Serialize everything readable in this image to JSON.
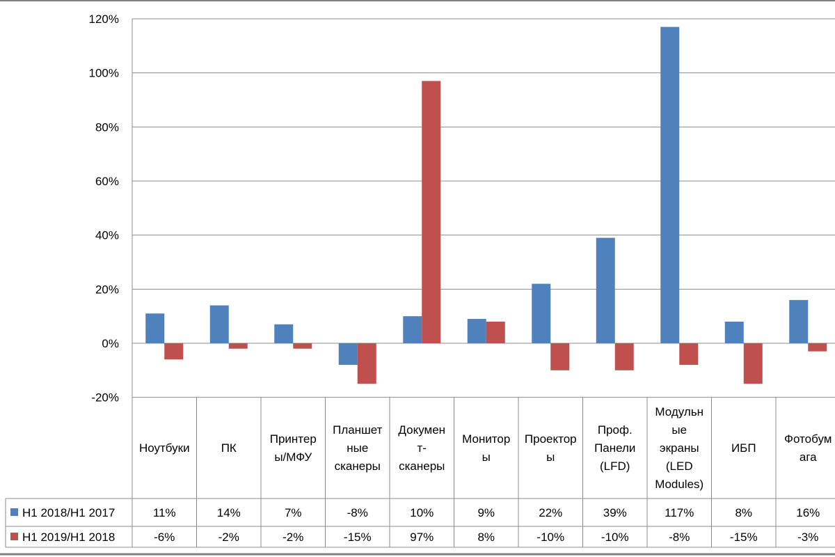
{
  "chart_data": {
    "type": "bar",
    "categories": [
      [
        "Ноутбуки"
      ],
      [
        "ПК"
      ],
      [
        "Принтер",
        "ы/МФУ"
      ],
      [
        "Планшет",
        "ные",
        "сканеры"
      ],
      [
        "Докумен",
        "т-",
        "сканеры"
      ],
      [
        "Монитор",
        "ы"
      ],
      [
        "Проектор",
        "ы"
      ],
      [
        "Проф.",
        "Панели",
        "(LFD)"
      ],
      [
        "Модульн",
        "ые",
        "экраны",
        "(LED",
        "Modules)"
      ],
      [
        "ИБП"
      ],
      [
        "Фотобум",
        "ага"
      ]
    ],
    "series": [
      {
        "name": "H1 2018/H1 2017",
        "color": "#4f81bd",
        "values": [
          11,
          14,
          7,
          -8,
          10,
          9,
          22,
          39,
          117,
          8,
          16
        ],
        "labels": [
          "11%",
          "14%",
          "7%",
          "-8%",
          "10%",
          "9%",
          "22%",
          "39%",
          "117%",
          "8%",
          "16%"
        ]
      },
      {
        "name": "H1 2019/H1 2018",
        "color": "#c0504d",
        "values": [
          -6,
          -2,
          -2,
          -15,
          97,
          8,
          -10,
          -10,
          -8,
          -15,
          -3
        ],
        "labels": [
          "-6%",
          "-2%",
          "-2%",
          "-15%",
          "97%",
          "8%",
          "-10%",
          "-10%",
          "-8%",
          "-15%",
          "-3%"
        ]
      }
    ],
    "y_ticks": [
      -20,
      0,
      20,
      40,
      60,
      80,
      100,
      120
    ],
    "y_tick_labels": [
      "-20%",
      "0%",
      "20%",
      "40%",
      "60%",
      "80%",
      "100%",
      "120%"
    ],
    "ylim": [
      -20,
      120
    ],
    "grid": true,
    "legend": "data-table"
  }
}
